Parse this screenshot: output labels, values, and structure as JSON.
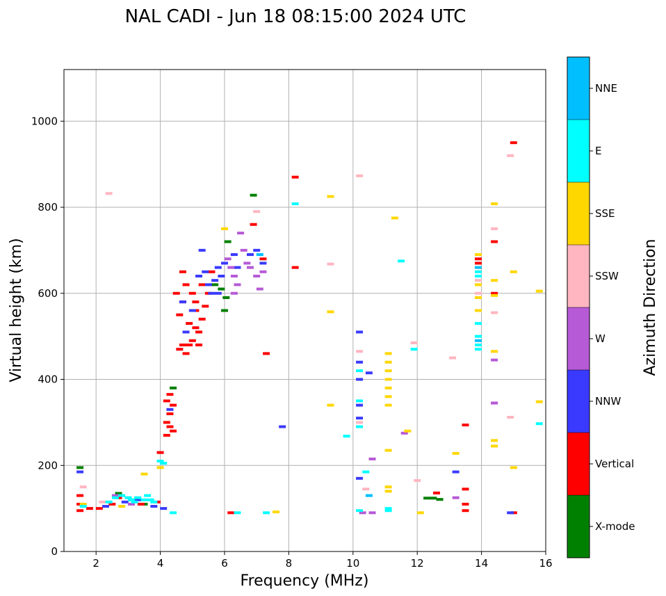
{
  "chart_data": {
    "type": "scatter",
    "title": "NAL CADI - Jun 18 08:15:00 2024 UTC",
    "xlabel": "Frequency (MHz)",
    "ylabel": "Virtual height (km)",
    "xlim": [
      1,
      16
    ],
    "ylim": [
      0,
      1120
    ],
    "xticks": [
      2,
      4,
      6,
      8,
      10,
      12,
      14,
      16
    ],
    "yticks": [
      0,
      200,
      400,
      600,
      800,
      1000
    ],
    "grid": true,
    "colorbar": {
      "title": "Azimuth Direction",
      "categories": [
        {
          "name": "X-mode",
          "color": "#008000"
        },
        {
          "name": "Vertical",
          "color": "#ff0000"
        },
        {
          "name": "NNW",
          "color": "#3a3aff"
        },
        {
          "name": "W",
          "color": "#b65ad6"
        },
        {
          "name": "SSW",
          "color": "#ffb6c1"
        },
        {
          "name": "SSE",
          "color": "#ffd700"
        },
        {
          "name": "E",
          "color": "#00ffff"
        },
        {
          "name": "NNE",
          "color": "#00bfff"
        }
      ]
    },
    "series": [
      {
        "name": "X-mode",
        "points": [
          [
            1.5,
            195
          ],
          [
            2.7,
            135
          ],
          [
            3.1,
            120
          ],
          [
            3.5,
            110
          ],
          [
            4.4,
            380
          ],
          [
            5.7,
            620
          ],
          [
            5.9,
            610
          ],
          [
            6.0,
            560
          ],
          [
            6.05,
            590
          ],
          [
            6.1,
            720
          ],
          [
            6.9,
            828
          ],
          [
            12.3,
            124
          ],
          [
            12.5,
            124
          ],
          [
            12.7,
            121
          ]
        ]
      },
      {
        "name": "Vertical",
        "points": [
          [
            1.5,
            130
          ],
          [
            1.5,
            110
          ],
          [
            1.5,
            95
          ],
          [
            1.8,
            100
          ],
          [
            2.1,
            100
          ],
          [
            2.5,
            110
          ],
          [
            2.7,
            125
          ],
          [
            3.4,
            110
          ],
          [
            3.9,
            115
          ],
          [
            4.0,
            230
          ],
          [
            4.2,
            350
          ],
          [
            4.2,
            300
          ],
          [
            4.2,
            270
          ],
          [
            4.3,
            365
          ],
          [
            4.3,
            320
          ],
          [
            4.3,
            290
          ],
          [
            4.4,
            340
          ],
          [
            4.4,
            280
          ],
          [
            4.5,
            600
          ],
          [
            4.6,
            550
          ],
          [
            4.6,
            470
          ],
          [
            4.7,
            650
          ],
          [
            4.7,
            580
          ],
          [
            4.7,
            480
          ],
          [
            4.8,
            620
          ],
          [
            4.8,
            460
          ],
          [
            4.9,
            530
          ],
          [
            4.9,
            480
          ],
          [
            5.0,
            600
          ],
          [
            5.0,
            490
          ],
          [
            5.1,
            560
          ],
          [
            5.1,
            520
          ],
          [
            5.1,
            580
          ],
          [
            5.2,
            480
          ],
          [
            5.2,
            510
          ],
          [
            5.3,
            620
          ],
          [
            5.3,
            540
          ],
          [
            5.4,
            570
          ],
          [
            5.5,
            600
          ],
          [
            5.6,
            650
          ],
          [
            6.2,
            90
          ],
          [
            6.9,
            760
          ],
          [
            7.2,
            680
          ],
          [
            7.3,
            460
          ],
          [
            8.2,
            870
          ],
          [
            8.2,
            660
          ],
          [
            12.6,
            136
          ],
          [
            13.5,
            294
          ],
          [
            13.5,
            145
          ],
          [
            13.5,
            110
          ],
          [
            13.5,
            95
          ],
          [
            13.9,
            680
          ],
          [
            13.9,
            670
          ],
          [
            14.4,
            720
          ],
          [
            14.4,
            600
          ],
          [
            15.0,
            950
          ],
          [
            15.0,
            90
          ]
        ]
      },
      {
        "name": "NNW",
        "points": [
          [
            1.5,
            185
          ],
          [
            2.3,
            105
          ],
          [
            2.9,
            115
          ],
          [
            3.3,
            120
          ],
          [
            3.8,
            105
          ],
          [
            4.1,
            100
          ],
          [
            4.3,
            330
          ],
          [
            4.7,
            580
          ],
          [
            4.8,
            510
          ],
          [
            5.0,
            560
          ],
          [
            5.2,
            640
          ],
          [
            5.3,
            700
          ],
          [
            5.4,
            650
          ],
          [
            5.5,
            620
          ],
          [
            5.6,
            600
          ],
          [
            5.7,
            630
          ],
          [
            5.8,
            660
          ],
          [
            5.8,
            600
          ],
          [
            5.9,
            640
          ],
          [
            6.0,
            670
          ],
          [
            6.3,
            690
          ],
          [
            6.4,
            660
          ],
          [
            6.8,
            690
          ],
          [
            7.0,
            700
          ],
          [
            7.2,
            670
          ],
          [
            7.8,
            290
          ],
          [
            10.2,
            510
          ],
          [
            10.2,
            440
          ],
          [
            10.2,
            400
          ],
          [
            10.2,
            340
          ],
          [
            10.2,
            310
          ],
          [
            10.2,
            170
          ],
          [
            10.5,
            415
          ],
          [
            13.2,
            185
          ],
          [
            14.4,
            345
          ],
          [
            14.9,
            90
          ]
        ]
      },
      {
        "name": "W",
        "points": [
          [
            2.6,
            130
          ],
          [
            3.1,
            110
          ],
          [
            6.1,
            680
          ],
          [
            6.2,
            660
          ],
          [
            6.3,
            640
          ],
          [
            6.3,
            600
          ],
          [
            6.4,
            620
          ],
          [
            6.5,
            740
          ],
          [
            6.6,
            700
          ],
          [
            6.7,
            670
          ],
          [
            6.8,
            660
          ],
          [
            7.0,
            640
          ],
          [
            7.1,
            610
          ],
          [
            7.2,
            650
          ],
          [
            10.3,
            90
          ],
          [
            10.6,
            215
          ],
          [
            10.6,
            90
          ],
          [
            11.6,
            275
          ],
          [
            13.2,
            125
          ],
          [
            14.4,
            445
          ],
          [
            14.4,
            345
          ]
        ]
      },
      {
        "name": "SSW",
        "points": [
          [
            1.6,
            150
          ],
          [
            2.2,
            115
          ],
          [
            2.4,
            832
          ],
          [
            7.0,
            790
          ],
          [
            9.3,
            668
          ],
          [
            10.2,
            873
          ],
          [
            10.2,
            465
          ],
          [
            10.2,
            300
          ],
          [
            10.4,
            145
          ],
          [
            11.9,
            485
          ],
          [
            12.0,
            165
          ],
          [
            13.1,
            450
          ],
          [
            14.4,
            750
          ],
          [
            14.4,
            555
          ],
          [
            14.9,
            920
          ],
          [
            14.9,
            312
          ],
          [
            13.9,
            630
          ],
          [
            13.9,
            600
          ]
        ]
      },
      {
        "name": "SSE",
        "points": [
          [
            1.6,
            110
          ],
          [
            2.8,
            105
          ],
          [
            3.5,
            180
          ],
          [
            4.0,
            195
          ],
          [
            6.0,
            750
          ],
          [
            7.6,
            92
          ],
          [
            9.3,
            825
          ],
          [
            9.3,
            557
          ],
          [
            9.3,
            340
          ],
          [
            11.1,
            460
          ],
          [
            11.1,
            440
          ],
          [
            11.1,
            420
          ],
          [
            11.1,
            400
          ],
          [
            11.1,
            380
          ],
          [
            11.1,
            360
          ],
          [
            11.1,
            340
          ],
          [
            11.1,
            235
          ],
          [
            11.1,
            150
          ],
          [
            11.1,
            140
          ],
          [
            11.3,
            775
          ],
          [
            11.7,
            280
          ],
          [
            12.1,
            90
          ],
          [
            13.2,
            228
          ],
          [
            13.9,
            690
          ],
          [
            13.9,
            660
          ],
          [
            13.9,
            620
          ],
          [
            13.9,
            590
          ],
          [
            13.9,
            560
          ],
          [
            14.4,
            808
          ],
          [
            14.4,
            630
          ],
          [
            14.4,
            595
          ],
          [
            14.4,
            465
          ],
          [
            14.4,
            258
          ],
          [
            14.4,
            245
          ],
          [
            15.0,
            650
          ],
          [
            15.0,
            195
          ],
          [
            15.8,
            605
          ],
          [
            15.8,
            348
          ]
        ]
      },
      {
        "name": "E",
        "points": [
          [
            1.6,
            105
          ],
          [
            2.4,
            115
          ],
          [
            2.6,
            125
          ],
          [
            2.8,
            130
          ],
          [
            3.0,
            125
          ],
          [
            3.1,
            120
          ],
          [
            3.2,
            115
          ],
          [
            3.3,
            125
          ],
          [
            3.5,
            120
          ],
          [
            3.6,
            130
          ],
          [
            3.7,
            120
          ],
          [
            3.8,
            115
          ],
          [
            4.0,
            210
          ],
          [
            4.1,
            205
          ],
          [
            4.4,
            90
          ],
          [
            6.4,
            90
          ],
          [
            7.3,
            90
          ],
          [
            8.2,
            808
          ],
          [
            9.8,
            268
          ],
          [
            10.2,
            420
          ],
          [
            10.2,
            350
          ],
          [
            10.2,
            290
          ],
          [
            10.2,
            95
          ],
          [
            10.4,
            185
          ],
          [
            11.1,
            100
          ],
          [
            11.1,
            95
          ],
          [
            11.5,
            675
          ],
          [
            11.9,
            470
          ],
          [
            13.9,
            530
          ],
          [
            13.9,
            500
          ],
          [
            13.9,
            480
          ],
          [
            13.9,
            470
          ],
          [
            13.9,
            650
          ],
          [
            13.9,
            640
          ],
          [
            15.8,
            297
          ]
        ]
      },
      {
        "name": "NNE",
        "points": [
          [
            7.1,
            690
          ],
          [
            13.9,
            660
          ],
          [
            13.9,
            490
          ],
          [
            10.5,
            130
          ]
        ]
      }
    ]
  }
}
